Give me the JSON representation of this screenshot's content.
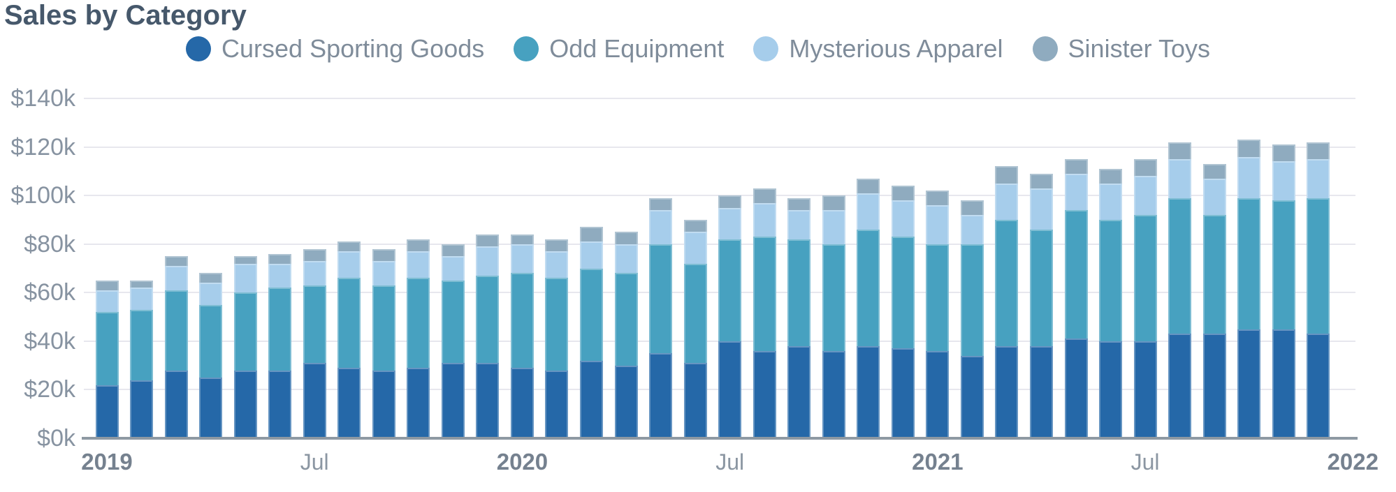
{
  "title": "Sales by Category",
  "colors": {
    "title_text": "#46586b",
    "legend_text": "#7f8c9a",
    "ytick_text": "#8793a1",
    "xtick_text": "#8b96a2",
    "xtick_year_text": "#75818f",
    "gridline": "#e7e7ee",
    "axis_line": "#8e99a3",
    "series_cursed": "#2568a8",
    "series_odd": "#47a1c0",
    "series_mysterious": "#a6cdeb",
    "series_sinister": "#8fabbf"
  },
  "legend": {
    "items": [
      {
        "label": "Cursed Sporting Goods",
        "color": "#2568a8"
      },
      {
        "label": "Odd Equipment",
        "color": "#47a1c0"
      },
      {
        "label": "Mysterious Apparel",
        "color": "#a6cdeb"
      },
      {
        "label": "Sinister Toys",
        "color": "#8fabbf"
      }
    ]
  },
  "y_axis": {
    "tick_labels": [
      "$0k",
      "$20k",
      "$40k",
      "$60k",
      "$80k",
      "$100k",
      "$120k",
      "$140k"
    ],
    "tick_values_k": [
      0,
      20,
      40,
      60,
      80,
      100,
      120,
      140
    ]
  },
  "x_axis": {
    "ticks": [
      {
        "label": "2019",
        "month_index": 0,
        "bold": true
      },
      {
        "label": "Jul",
        "month_index": 6,
        "bold": false
      },
      {
        "label": "2020",
        "month_index": 12,
        "bold": true
      },
      {
        "label": "Jul",
        "month_index": 18,
        "bold": false
      },
      {
        "label": "2021",
        "month_index": 24,
        "bold": true
      },
      {
        "label": "Jul",
        "month_index": 30,
        "bold": false
      },
      {
        "label": "2022",
        "month_index": 36,
        "bold": true
      }
    ]
  },
  "chart_data": {
    "type": "bar",
    "stacked": true,
    "title": "Sales by Category",
    "unit": "USD thousands",
    "ylim_k": [
      0,
      140
    ],
    "grid": "horizontal",
    "legend_position": "top-center",
    "x": [
      "2019-01",
      "2019-02",
      "2019-03",
      "2019-04",
      "2019-05",
      "2019-06",
      "2019-07",
      "2019-08",
      "2019-09",
      "2019-10",
      "2019-11",
      "2019-12",
      "2020-01",
      "2020-02",
      "2020-03",
      "2020-04",
      "2020-05",
      "2020-06",
      "2020-07",
      "2020-08",
      "2020-09",
      "2020-10",
      "2020-11",
      "2020-12",
      "2021-01",
      "2021-02",
      "2021-03",
      "2021-04",
      "2021-05",
      "2021-06",
      "2021-07",
      "2021-08",
      "2021-09",
      "2021-10",
      "2021-11",
      "2021-12"
    ],
    "series": [
      {
        "name": "Cursed Sporting Goods",
        "color": "#2568a8",
        "values_k": [
          22,
          24,
          28,
          25,
          28,
          28,
          31,
          29,
          28,
          29,
          31,
          31,
          29,
          28,
          32,
          30,
          35,
          31,
          40,
          36,
          38,
          36,
          38,
          37,
          36,
          34,
          38,
          38,
          41,
          40,
          40,
          43,
          43,
          45,
          45,
          43
        ]
      },
      {
        "name": "Odd Equipment",
        "color": "#47a1c0",
        "values_k": [
          30,
          29,
          33,
          30,
          32,
          34,
          32,
          37,
          35,
          37,
          34,
          36,
          39,
          38,
          38,
          38,
          45,
          41,
          42,
          47,
          44,
          44,
          48,
          46,
          44,
          46,
          52,
          48,
          53,
          50,
          52,
          56,
          49,
          54,
          53,
          56
        ]
      },
      {
        "name": "Mysterious Apparel",
        "color": "#a6cdeb",
        "values_k": [
          9,
          9,
          10,
          9,
          12,
          10,
          10,
          11,
          10,
          11,
          10,
          12,
          12,
          11,
          11,
          12,
          14,
          13,
          13,
          14,
          12,
          14,
          15,
          15,
          16,
          12,
          15,
          17,
          15,
          15,
          16,
          16,
          15,
          17,
          16,
          16
        ]
      },
      {
        "name": "Sinister Toys",
        "color": "#8fabbf",
        "values_k": [
          4,
          3,
          4,
          4,
          3,
          4,
          5,
          4,
          5,
          5,
          5,
          5,
          4,
          5,
          6,
          5,
          5,
          5,
          5,
          6,
          5,
          6,
          6,
          6,
          6,
          6,
          7,
          6,
          6,
          6,
          7,
          7,
          6,
          7,
          7,
          7
        ]
      }
    ]
  }
}
